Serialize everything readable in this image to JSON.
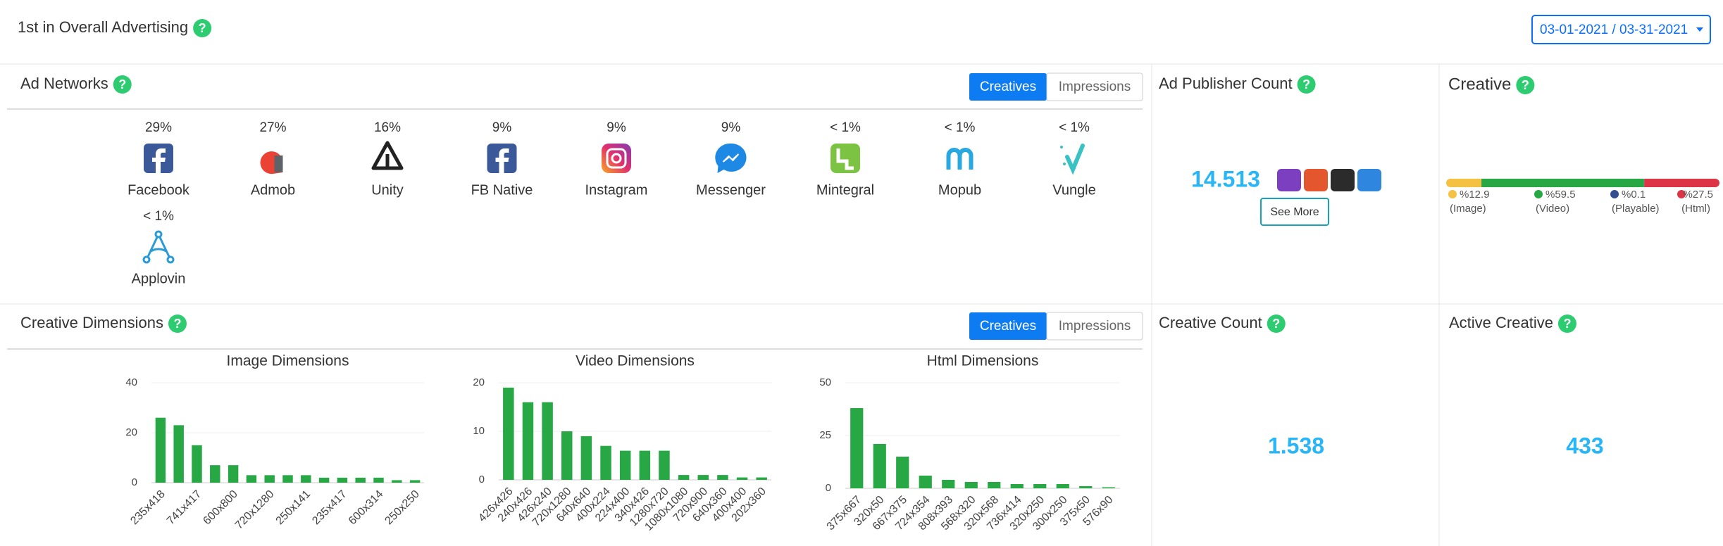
{
  "help_icon": "?",
  "header": {
    "title": "1st in Overall Advertising",
    "date_range": "03-01-2021 / 03-31-2021"
  },
  "toggle": [
    "Creatives",
    "Impressions"
  ],
  "ad_networks": {
    "title": "Ad Networks",
    "items": [
      {
        "share": "29%",
        "name": "Facebook"
      },
      {
        "share": "27%",
        "name": "Admob"
      },
      {
        "share": "16%",
        "name": "Unity"
      },
      {
        "share": "9%",
        "name": "FB Native"
      },
      {
        "share": "9%",
        "name": "Instagram"
      },
      {
        "share": "9%",
        "name": "Messenger"
      },
      {
        "share": "< 1%",
        "name": "Mintegral"
      },
      {
        "share": "< 1%",
        "name": "Mopub"
      },
      {
        "share": "< 1%",
        "name": "Vungle"
      },
      {
        "share": "< 1%",
        "name": "Applovin"
      }
    ]
  },
  "ad_publisher_count": {
    "title": "Ad Publisher Count",
    "value": "14.513",
    "button": "See More"
  },
  "creative": {
    "title": "Creative",
    "segments": [
      {
        "value": 12.9,
        "label": "%12.9",
        "name": "(Image)",
        "color": "#f5c142"
      },
      {
        "value": 59.5,
        "label": "%59.5",
        "name": "(Video)",
        "color": "#28a745"
      },
      {
        "value": 0.1,
        "label": "%0.1",
        "name": "(Playable)",
        "color": "#2f4f8f"
      },
      {
        "value": 27.5,
        "label": "%27.5",
        "name": "(Html)",
        "color": "#dc3545"
      }
    ]
  },
  "creative_dimensions": {
    "title": "Creative Dimensions"
  },
  "chart_data": [
    {
      "type": "bar",
      "title": "Image Dimensions",
      "color": "#28a745",
      "categories": [
        "235x418",
        null,
        "741x417",
        null,
        "600x800",
        null,
        "720x1280",
        null,
        "250x141",
        null,
        "235x417",
        null,
        "600x314",
        null,
        "250x250"
      ],
      "values": [
        26,
        23,
        15,
        7,
        7,
        3,
        3,
        3,
        3,
        2,
        2,
        2,
        2,
        1,
        1
      ],
      "ylim": [
        0,
        40
      ],
      "yticks": [
        0,
        20,
        40
      ],
      "grid": true
    },
    {
      "type": "bar",
      "title": "Video Dimensions",
      "color": "#28a745",
      "categories": [
        "426x426",
        "240x426",
        "426x240",
        "720x1280",
        "640x640",
        "400x224",
        "224x400",
        "340x426",
        "1280x720",
        "1080x1080",
        "720x900",
        "640x360",
        "400x400",
        "202x360"
      ],
      "values": [
        19,
        16,
        16,
        10,
        9,
        7,
        6,
        6,
        6,
        1,
        1,
        1,
        0.5,
        0.5
      ],
      "ylim": [
        0,
        20
      ],
      "yticks": [
        0,
        10,
        20
      ],
      "grid": true
    },
    {
      "type": "bar",
      "title": "Html Dimensions",
      "color": "#28a745",
      "categories": [
        "375x667",
        "320x50",
        "667x375",
        "724x354",
        "808x393",
        "568x320",
        "320x568",
        "736x414",
        "320x250",
        "300x250",
        "375x50",
        "576x90"
      ],
      "values": [
        38,
        21,
        15,
        6,
        4,
        3,
        3,
        2,
        2,
        2,
        1,
        0.5
      ],
      "ylim": [
        0,
        50
      ],
      "yticks": [
        0,
        25,
        50
      ],
      "grid": true
    }
  ],
  "creative_count": {
    "title": "Creative Count",
    "value": "1.538"
  },
  "active_creative": {
    "title": "Active Creative",
    "value": "433"
  }
}
